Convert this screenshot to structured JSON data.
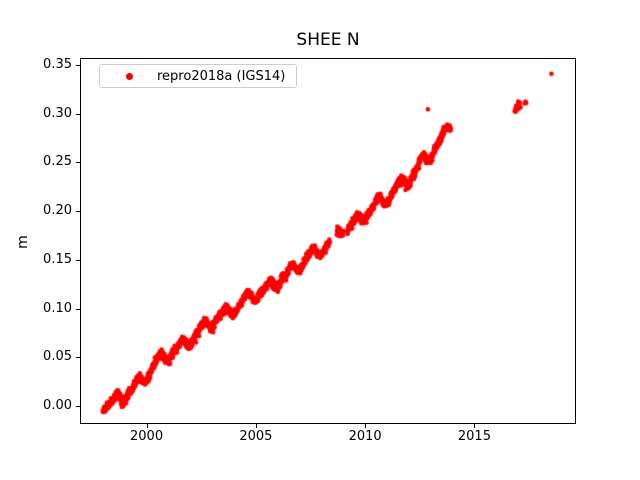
{
  "figure": {
    "background": "#ffffff",
    "spine_color": "#000000"
  },
  "chart_data": {
    "type": "scatter",
    "title": "SHEE N",
    "xlabel": "",
    "ylabel": "m",
    "grid": false,
    "xlim": [
      1997.0,
      2019.6
    ],
    "ylim": [
      -0.0173,
      0.3561
    ],
    "xticks": {
      "values": [
        2000,
        2005,
        2010,
        2015
      ],
      "labels": [
        "2000",
        "2005",
        "2010",
        "2015"
      ]
    },
    "yticks": {
      "values": [
        0.0,
        0.05,
        0.1,
        0.15,
        0.2,
        0.25,
        0.3,
        0.35
      ],
      "labels": [
        "0.00",
        "0.05",
        "0.10",
        "0.15",
        "0.20",
        "0.25",
        "0.30",
        "0.35"
      ]
    },
    "legend": {
      "position": "upper left",
      "frame_border_color": "#cccccc",
      "entries": [
        {
          "label": "repro2018a (IGS14)",
          "color": "#ff0000",
          "marker": "dot"
        }
      ]
    },
    "series": [
      {
        "name": "repro2018a (IGS14)",
        "color": "#ff0000",
        "marker_radius_px": 2.3,
        "seasonal_amplitude": 0.0052,
        "seasonal_amplitude2": 0.0016,
        "seasonal_phase": 0.05,
        "noise_sigma": 0.0021,
        "outlier_rate": 0.012,
        "outlier_scale": 0.012,
        "segments": [
          {
            "t_start": 1998.0,
            "t_end": 2008.38,
            "interval": 0.008,
            "anchors": [
              [
                1998.0,
                0.0
              ],
              [
                1998.5,
                0.004
              ],
              [
                1999.0,
                0.012
              ],
              [
                1999.5,
                0.02
              ],
              [
                2000.0,
                0.032
              ],
              [
                2000.5,
                0.046
              ],
              [
                2001.0,
                0.053
              ],
              [
                2001.5,
                0.059
              ],
              [
                2002.0,
                0.069
              ],
              [
                2002.5,
                0.078
              ],
              [
                2003.0,
                0.088
              ],
              [
                2003.5,
                0.094
              ],
              [
                2004.0,
                0.1
              ],
              [
                2004.5,
                0.108
              ],
              [
                2005.0,
                0.115
              ],
              [
                2005.5,
                0.12
              ],
              [
                2006.0,
                0.128
              ],
              [
                2006.5,
                0.136
              ],
              [
                2007.0,
                0.146
              ],
              [
                2007.5,
                0.154
              ],
              [
                2008.0,
                0.161
              ],
              [
                2008.38,
                0.168
              ]
            ]
          },
          {
            "t_start": 2008.7,
            "t_end": 2009.0,
            "interval": 0.01,
            "anchors": [
              [
                2008.7,
                0.1765
              ],
              [
                2009.0,
                0.1845
              ]
            ]
          },
          {
            "t_start": 2009.18,
            "t_end": 2013.92,
            "interval": 0.008,
            "anchors": [
              [
                2009.18,
                0.182
              ],
              [
                2009.5,
                0.187
              ],
              [
                2010.0,
                0.196
              ],
              [
                2010.5,
                0.207
              ],
              [
                2011.0,
                0.214
              ],
              [
                2011.5,
                0.225
              ],
              [
                2012.0,
                0.233
              ],
              [
                2012.5,
                0.247
              ],
              [
                2013.0,
                0.259
              ],
              [
                2013.5,
                0.273
              ],
              [
                2013.92,
                0.29
              ]
            ]
          }
        ],
        "isolated_points": [
          [
            2012.87,
            0.3045
          ],
          [
            2016.84,
            0.3025
          ],
          [
            2016.87,
            0.305
          ],
          [
            2016.89,
            0.302
          ],
          [
            2016.9,
            0.308
          ],
          [
            2016.93,
            0.3035
          ],
          [
            2016.96,
            0.307
          ],
          [
            2016.99,
            0.31
          ],
          [
            2017.0,
            0.3125
          ],
          [
            2017.02,
            0.305
          ],
          [
            2017.05,
            0.309
          ],
          [
            2017.08,
            0.3115
          ],
          [
            2017.11,
            0.3065
          ],
          [
            2017.3,
            0.3105
          ],
          [
            2017.34,
            0.3125
          ],
          [
            2017.37,
            0.311
          ],
          [
            2018.52,
            0.341
          ]
        ]
      }
    ]
  }
}
